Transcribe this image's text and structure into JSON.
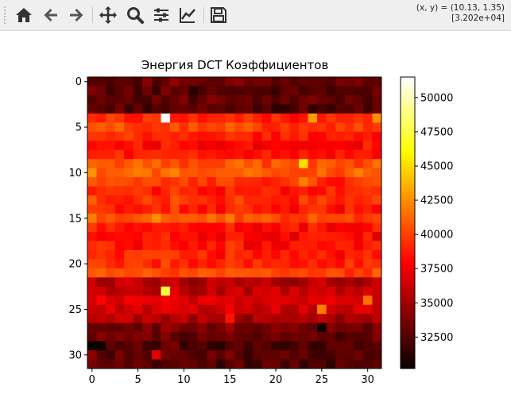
{
  "toolbar": {
    "buttons": [
      {
        "name": "home-icon"
      },
      {
        "name": "back-icon"
      },
      {
        "name": "forward-icon"
      },
      {
        "name": "pan-icon"
      },
      {
        "name": "zoom-icon"
      },
      {
        "name": "subplots-icon"
      },
      {
        "name": "customize-icon"
      },
      {
        "name": "save-icon"
      }
    ],
    "coords_line1": "(x, y) = (10.13, 1.35)",
    "coords_line2": "[3.202e+04]"
  },
  "colors": {
    "toolbar_bg": "#efefef",
    "icon": "#333333",
    "colormap": "hot"
  },
  "chart_data": {
    "type": "heatmap",
    "title": "Энергия DCT Коэффициентов",
    "colormap": "hot",
    "vmin": 30200,
    "vmax": 51500,
    "rows": 32,
    "cols": 32,
    "x_ticks": [
      0,
      5,
      10,
      15,
      20,
      25,
      30
    ],
    "y_ticks": [
      0,
      5,
      10,
      15,
      20,
      25,
      30
    ],
    "colorbar_ticks": [
      32500,
      35000,
      37500,
      40000,
      42500,
      45000,
      47500,
      50000
    ],
    "row_levels": [
      33000,
      32500,
      32800,
      32400,
      39000,
      40000,
      38800,
      38200,
      38600,
      40500,
      41000,
      39500,
      38800,
      39300,
      38700,
      40200,
      38300,
      38000,
      38400,
      38900,
      39000,
      40100,
      35500,
      36000,
      36800,
      36300,
      35200,
      33500,
      33000,
      32200,
      32700,
      32400
    ],
    "col_offsets": [
      600,
      300,
      200,
      400,
      300,
      100,
      200,
      0,
      400,
      600,
      0,
      -200,
      100,
      300,
      -100,
      600,
      200,
      -200,
      -100,
      -200,
      0,
      -200,
      -100,
      0,
      100,
      200,
      -200,
      -300,
      0,
      -100,
      200,
      100
    ],
    "highlights": [
      {
        "row": 4,
        "col": 8,
        "value": 51500
      },
      {
        "row": 23,
        "col": 8,
        "value": 47500
      },
      {
        "row": 9,
        "col": 23,
        "value": 45000
      },
      {
        "row": 4,
        "col": 24,
        "value": 43000
      },
      {
        "row": 4,
        "col": 31,
        "value": 42500
      },
      {
        "row": 15,
        "col": 7,
        "value": 42500
      },
      {
        "row": 15,
        "col": 0,
        "value": 42000
      },
      {
        "row": 11,
        "col": 23,
        "value": 42000
      },
      {
        "row": 25,
        "col": 25,
        "value": 42000
      },
      {
        "row": 24,
        "col": 30,
        "value": 41500
      },
      {
        "row": 26,
        "col": 15,
        "value": 38500
      },
      {
        "row": 29,
        "col": 0,
        "value": 30200
      },
      {
        "row": 29,
        "col": 1,
        "value": 30300
      },
      {
        "row": 27,
        "col": 25,
        "value": 30500
      },
      {
        "row": 30,
        "col": 7,
        "value": 37000
      }
    ]
  }
}
